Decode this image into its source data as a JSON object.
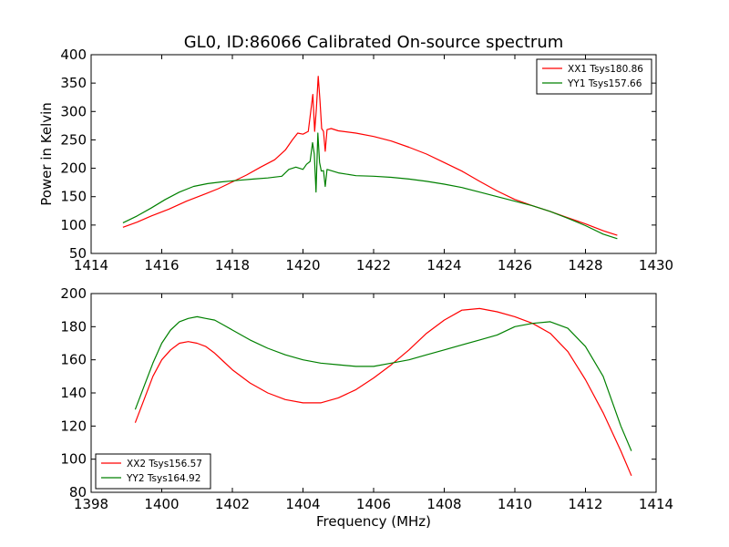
{
  "chart_data": [
    {
      "type": "line",
      "title": "GL0, ID:86066 Calibrated On-source spectrum",
      "xlabel": "",
      "ylabel": "Power in Kelvin",
      "xlim": [
        1414,
        1430
      ],
      "ylim": [
        50,
        400
      ],
      "xticks": [
        1414,
        1416,
        1418,
        1420,
        1422,
        1424,
        1426,
        1428,
        1430
      ],
      "yticks": [
        50,
        100,
        150,
        200,
        250,
        300,
        350,
        400
      ],
      "legend_position": "top-right",
      "series": [
        {
          "name": "XX1 Tsys180.86",
          "color": "#ff0000",
          "points": [
            [
              1414.9,
              96
            ],
            [
              1415.3,
              105
            ],
            [
              1415.7,
              116
            ],
            [
              1416.2,
              128
            ],
            [
              1416.7,
              142
            ],
            [
              1417.2,
              154
            ],
            [
              1417.6,
              164
            ],
            [
              1418.0,
              176
            ],
            [
              1418.4,
              188
            ],
            [
              1418.8,
              202
            ],
            [
              1419.2,
              215
            ],
            [
              1419.5,
              232
            ],
            [
              1419.7,
              250
            ],
            [
              1419.85,
              262
            ],
            [
              1420.0,
              260
            ],
            [
              1420.15,
              265
            ],
            [
              1420.22,
              300
            ],
            [
              1420.28,
              330
            ],
            [
              1420.33,
              265
            ],
            [
              1420.38,
              305
            ],
            [
              1420.43,
              362
            ],
            [
              1420.48,
              320
            ],
            [
              1420.53,
              270
            ],
            [
              1420.58,
              265
            ],
            [
              1420.63,
              230
            ],
            [
              1420.68,
              268
            ],
            [
              1420.8,
              270
            ],
            [
              1421.0,
              266
            ],
            [
              1421.5,
              262
            ],
            [
              1422.0,
              256
            ],
            [
              1422.5,
              248
            ],
            [
              1423.0,
              237
            ],
            [
              1423.5,
              225
            ],
            [
              1424.0,
              210
            ],
            [
              1424.5,
              195
            ],
            [
              1425.0,
              177
            ],
            [
              1425.5,
              160
            ],
            [
              1426.0,
              145
            ],
            [
              1426.5,
              134
            ],
            [
              1427.0,
              124
            ],
            [
              1427.5,
              113
            ],
            [
              1428.0,
              102
            ],
            [
              1428.5,
              90
            ],
            [
              1428.9,
              82
            ]
          ]
        },
        {
          "name": "YY1 Tsys157.66",
          "color": "#008000",
          "points": [
            [
              1414.9,
              104
            ],
            [
              1415.3,
              116
            ],
            [
              1415.7,
              130
            ],
            [
              1416.1,
              145
            ],
            [
              1416.5,
              158
            ],
            [
              1416.9,
              168
            ],
            [
              1417.3,
              173
            ],
            [
              1417.7,
              176
            ],
            [
              1418.2,
              179
            ],
            [
              1418.6,
              181
            ],
            [
              1419.0,
              183
            ],
            [
              1419.4,
              186
            ],
            [
              1419.6,
              198
            ],
            [
              1419.8,
              202
            ],
            [
              1420.0,
              198
            ],
            [
              1420.1,
              207
            ],
            [
              1420.2,
              212
            ],
            [
              1420.27,
              245
            ],
            [
              1420.32,
              225
            ],
            [
              1420.37,
              158
            ],
            [
              1420.42,
              262
            ],
            [
              1420.47,
              210
            ],
            [
              1420.52,
              195
            ],
            [
              1420.58,
              196
            ],
            [
              1420.63,
              168
            ],
            [
              1420.68,
              198
            ],
            [
              1421.0,
              192
            ],
            [
              1421.5,
              187
            ],
            [
              1422.0,
              186
            ],
            [
              1422.5,
              184
            ],
            [
              1423.0,
              181
            ],
            [
              1423.5,
              177
            ],
            [
              1424.0,
              172
            ],
            [
              1424.5,
              166
            ],
            [
              1425.0,
              158
            ],
            [
              1425.5,
              150
            ],
            [
              1426.0,
              142
            ],
            [
              1426.5,
              134
            ],
            [
              1427.0,
              124
            ],
            [
              1427.5,
              112
            ],
            [
              1428.0,
              99
            ],
            [
              1428.5,
              84
            ],
            [
              1428.9,
              76
            ]
          ]
        }
      ]
    },
    {
      "type": "line",
      "title": "",
      "xlabel": "Frequency (MHz)",
      "ylabel": "",
      "xlim": [
        1398,
        1414
      ],
      "ylim": [
        80,
        200
      ],
      "xticks": [
        1398,
        1400,
        1402,
        1404,
        1406,
        1408,
        1410,
        1412,
        1414
      ],
      "yticks": [
        80,
        100,
        120,
        140,
        160,
        180,
        200
      ],
      "legend_position": "bottom-left",
      "series": [
        {
          "name": "XX2 Tsys156.57",
          "color": "#ff0000",
          "points": [
            [
              1399.25,
              122
            ],
            [
              1399.5,
              136
            ],
            [
              1399.75,
              150
            ],
            [
              1400.0,
              160
            ],
            [
              1400.25,
              166
            ],
            [
              1400.5,
              170
            ],
            [
              1400.75,
              171
            ],
            [
              1401.0,
              170
            ],
            [
              1401.25,
              168
            ],
            [
              1401.5,
              164
            ],
            [
              1401.75,
              159
            ],
            [
              1402.0,
              154
            ],
            [
              1402.5,
              146
            ],
            [
              1403.0,
              140
            ],
            [
              1403.5,
              136
            ],
            [
              1404.0,
              134
            ],
            [
              1404.5,
              134
            ],
            [
              1405.0,
              137
            ],
            [
              1405.5,
              142
            ],
            [
              1406.0,
              149
            ],
            [
              1406.5,
              157
            ],
            [
              1407.0,
              166
            ],
            [
              1407.5,
              176
            ],
            [
              1408.0,
              184
            ],
            [
              1408.5,
              190
            ],
            [
              1409.0,
              191
            ],
            [
              1409.5,
              189
            ],
            [
              1410.0,
              186
            ],
            [
              1410.5,
              182
            ],
            [
              1411.0,
              176
            ],
            [
              1411.5,
              165
            ],
            [
              1412.0,
              148
            ],
            [
              1412.5,
              128
            ],
            [
              1413.0,
              105
            ],
            [
              1413.3,
              90
            ]
          ]
        },
        {
          "name": "YY2 Tsys164.92",
          "color": "#008000",
          "points": [
            [
              1399.25,
              130
            ],
            [
              1399.5,
              144
            ],
            [
              1399.75,
              158
            ],
            [
              1400.0,
              170
            ],
            [
              1400.25,
              178
            ],
            [
              1400.5,
              183
            ],
            [
              1400.75,
              185
            ],
            [
              1401.0,
              186
            ],
            [
              1401.25,
              185
            ],
            [
              1401.5,
              184
            ],
            [
              1401.75,
              181
            ],
            [
              1402.0,
              178
            ],
            [
              1402.5,
              172
            ],
            [
              1403.0,
              167
            ],
            [
              1403.5,
              163
            ],
            [
              1404.0,
              160
            ],
            [
              1404.5,
              158
            ],
            [
              1405.0,
              157
            ],
            [
              1405.5,
              156
            ],
            [
              1406.0,
              156
            ],
            [
              1406.5,
              158
            ],
            [
              1407.0,
              160
            ],
            [
              1407.5,
              163
            ],
            [
              1408.0,
              166
            ],
            [
              1408.5,
              169
            ],
            [
              1409.0,
              172
            ],
            [
              1409.5,
              175
            ],
            [
              1410.0,
              180
            ],
            [
              1410.5,
              182
            ],
            [
              1411.0,
              183
            ],
            [
              1411.5,
              179
            ],
            [
              1412.0,
              168
            ],
            [
              1412.5,
              150
            ],
            [
              1413.0,
              120
            ],
            [
              1413.3,
              105
            ]
          ]
        }
      ]
    }
  ]
}
